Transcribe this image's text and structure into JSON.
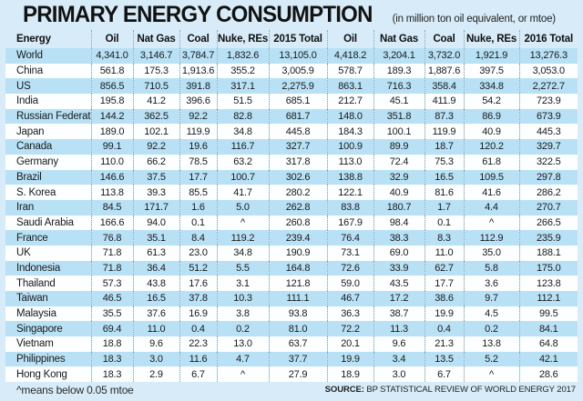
{
  "title": "PRIMARY ENERGY CONSUMPTION",
  "subtitle": "(in million ton oil equivalent, or mtoe)",
  "footnote": "^means below 0.05 mtoe",
  "source": {
    "label": "SOURCE:",
    "text": "BP STATISTICAL REVIEW OF WORLD ENERGY 2017"
  },
  "colors": {
    "page_background": "#d7ecf8",
    "stripe_row": "#b8e1f5",
    "plain_row": "#fcfeff",
    "text": "#1a1a1a",
    "column_separator": "#86a4b4"
  },
  "chart_data": {
    "type": "table",
    "title": "PRIMARY ENERGY CONSUMPTION",
    "units": "million ton oil equivalent (mtoe)",
    "footnote_symbol": "^",
    "footnote_meaning": "below 0.05 mtoe",
    "columns": [
      "Energy",
      "Oil",
      "Nat Gas",
      "Coal",
      "Nuke, REs",
      "2015 Total",
      "Oil",
      "Nat Gas",
      "Coal",
      "Nuke, REs",
      "2016 Total"
    ],
    "rows": [
      [
        "World",
        "4,341.0",
        "3,146.7",
        "3,784.7",
        "1,832.6",
        "13,105.0",
        "4,418.2",
        "3,204.1",
        "3,732.0",
        "1,921.9",
        "13,276.3"
      ],
      [
        "China",
        "561.8",
        "175.3",
        "1,913.6",
        "355.2",
        "3,005.9",
        "578.7",
        "189.3",
        "1,887.6",
        "397.5",
        "3,053.0"
      ],
      [
        "US",
        "856.5",
        "710.5",
        "391.8",
        "317.1",
        "2,275.9",
        "863.1",
        "716.3",
        "358.4",
        "334.8",
        "2,272.7"
      ],
      [
        "India",
        "195.8",
        "41.2",
        "396.6",
        "51.5",
        "685.1",
        "212.7",
        "45.1",
        "411.9",
        "54.2",
        "723.9"
      ],
      [
        "Russian Federation",
        "144.2",
        "362.5",
        "92.2",
        "82.8",
        "681.7",
        "148.0",
        "351.8",
        "87.3",
        "86.9",
        "673.9"
      ],
      [
        "Japan",
        "189.0",
        "102.1",
        "119.9",
        "34.8",
        "445.8",
        "184.3",
        "100.1",
        "119.9",
        "40.9",
        "445.3"
      ],
      [
        "Canada",
        "99.1",
        "92.2",
        "19.6",
        "116.7",
        "327.7",
        "100.9",
        "89.9",
        "18.7",
        "120.2",
        "329.7"
      ],
      [
        "Germany",
        "110.0",
        "66.2",
        "78.5",
        "63.2",
        "317.8",
        "113.0",
        "72.4",
        "75.3",
        "61.8",
        "322.5"
      ],
      [
        "Brazil",
        "146.6",
        "37.5",
        "17.7",
        "100.7",
        "302.6",
        "138.8",
        "32.9",
        "16.5",
        "109.5",
        "297.8"
      ],
      [
        "S. Korea",
        "113.8",
        "39.3",
        "85.5",
        "41.7",
        "280.2",
        "122.1",
        "40.9",
        "81.6",
        "41.6",
        "286.2"
      ],
      [
        "Iran",
        "84.5",
        "171.7",
        "1.6",
        "5.0",
        "262.8",
        "83.8",
        "180.7",
        "1.7",
        "4.4",
        "270.7"
      ],
      [
        "Saudi Arabia",
        "166.6",
        "94.0",
        "0.1",
        "^",
        "260.8",
        "167.9",
        "98.4",
        "0.1",
        "^",
        "266.5"
      ],
      [
        "France",
        "76.8",
        "35.1",
        "8.4",
        "119.2",
        "239.4",
        "76.4",
        "38.3",
        "8.3",
        "112.9",
        "235.9"
      ],
      [
        "UK",
        "71.8",
        "61.3",
        "23.0",
        "34.8",
        "190.9",
        "73.1",
        "69.0",
        "11.0",
        "35.0",
        "188.1"
      ],
      [
        "Indonesia",
        "71.8",
        "36.4",
        "51.2",
        "5.5",
        "164.8",
        "72.6",
        "33.9",
        "62.7",
        "5.8",
        "175.0"
      ],
      [
        "Thailand",
        "57.3",
        "43.8",
        "17.6",
        "3.1",
        "121.8",
        "59.0",
        "43.5",
        "17.7",
        "3.6",
        "123.8"
      ],
      [
        "Taiwan",
        "46.5",
        "16.5",
        "37.8",
        "10.3",
        "111.1",
        "46.7",
        "17.2",
        "38.6",
        "9.7",
        "112.1"
      ],
      [
        "Malaysia",
        "35.5",
        "37.6",
        "16.9",
        "3.8",
        "93.8",
        "36.3",
        "38.7",
        "19.9",
        "4.5",
        "99.5"
      ],
      [
        "Singapore",
        "69.4",
        "11.0",
        "0.4",
        "0.2",
        "81.0",
        "72.2",
        "11.3",
        "0.4",
        "0.2",
        "84.1"
      ],
      [
        "Vietnam",
        "18.8",
        "9.6",
        "22.3",
        "13.0",
        "63.7",
        "20.1",
        "9.6",
        "21.3",
        "13.8",
        "64.8"
      ],
      [
        "Philippines",
        "18.3",
        "3.0",
        "11.6",
        "4.7",
        "37.7",
        "19.9",
        "3.4",
        "13.5",
        "5.2",
        "42.1"
      ],
      [
        "Hong Kong",
        "18.3",
        "2.9",
        "6.7",
        "^",
        "27.9",
        "18.9",
        "3.0",
        "6.7",
        "^",
        "28.6"
      ]
    ]
  }
}
